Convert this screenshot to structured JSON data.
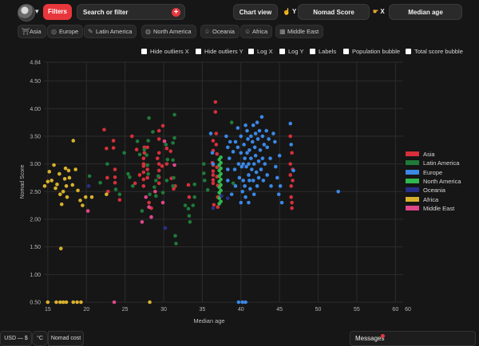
{
  "topbar": {
    "filters_label": "Filters",
    "search_label": "Search or filter",
    "search_plus": "+",
    "chart_view_label": "Chart view",
    "y_axis_tag": "Y",
    "y_axis_value": "Nomad Score",
    "x_axis_tag": "X",
    "x_axis_value": "Median age"
  },
  "regions": [
    {
      "label": "Asia",
      "icon": "⛩"
    },
    {
      "label": "Europe",
      "icon": "◎"
    },
    {
      "label": "Latin America",
      "icon": "✎"
    },
    {
      "label": "North America",
      "icon": "◍"
    },
    {
      "label": "Oceania",
      "icon": "♧"
    },
    {
      "label": "Africa",
      "icon": "☺"
    },
    {
      "label": "Middle East",
      "icon": "▦"
    }
  ],
  "options": [
    "Hide outliers X",
    "Hide outliers Y",
    "Log X",
    "Log Y",
    "Labels",
    "Population bubble",
    "Total score bubble"
  ],
  "chart_data": {
    "type": "scatter",
    "xlabel": "Median age",
    "ylabel": "Nomad Score",
    "xlim": [
      14.5,
      61
    ],
    "ylim": [
      0.5,
      4.84
    ],
    "x_ticks": [
      "15",
      "20",
      "25",
      "30",
      "35",
      "40",
      "45",
      "50",
      "55",
      "60"
    ],
    "x_tick_extra": "60",
    "y_ticks": [
      "4.84",
      "4.50",
      "4.00",
      "3.50",
      "3.00",
      "2.50",
      "2.00",
      "1.50",
      "1.00",
      "0.50"
    ],
    "grid": true,
    "legend_position": "right",
    "series": [
      {
        "name": "Asia",
        "color": "#d6303a",
        "points": [
          [
            22.3,
            3.62
          ],
          [
            22.6,
            3.28
          ],
          [
            22.7,
            2.75
          ],
          [
            22.8,
            2.5
          ],
          [
            23.5,
            3.42
          ],
          [
            23.5,
            3.29
          ],
          [
            23.7,
            2.76
          ],
          [
            23.7,
            2.66
          ],
          [
            23.7,
            2.9
          ],
          [
            24.3,
            2.35
          ],
          [
            25.9,
            3.5
          ],
          [
            26.3,
            2.65
          ],
          [
            26.5,
            3.26
          ],
          [
            26.9,
            2.8
          ],
          [
            27.4,
            3.1
          ],
          [
            27.4,
            3.0
          ],
          [
            27.4,
            2.96
          ],
          [
            27.4,
            2.85
          ],
          [
            27.4,
            2.72
          ],
          [
            27.4,
            2.6
          ],
          [
            27.5,
            3.3
          ],
          [
            27.5,
            3.2
          ],
          [
            27.9,
            3.3
          ],
          [
            27.9,
            2.98
          ],
          [
            27.9,
            2.9
          ],
          [
            27.9,
            2.75
          ],
          [
            28.1,
            2.3
          ],
          [
            28.4,
            2.2
          ],
          [
            29.2,
            3.1
          ],
          [
            29.4,
            3.6
          ],
          [
            29.4,
            3.45
          ],
          [
            29.4,
            3.2
          ],
          [
            29.4,
            3.0
          ],
          [
            29.4,
            2.88
          ],
          [
            29.4,
            2.76
          ],
          [
            29.4,
            2.65
          ],
          [
            29.8,
            2.96
          ],
          [
            29.9,
            3.69
          ],
          [
            30.4,
            3.28
          ],
          [
            30.4,
            3.0
          ],
          [
            30.9,
            3.23
          ],
          [
            31.0,
            2.74
          ],
          [
            31.3,
            2.55
          ],
          [
            31.5,
            2.6
          ],
          [
            33.2,
            2.62
          ],
          [
            33.3,
            2.4
          ],
          [
            36.3,
            3.02
          ],
          [
            36.4,
            3.42
          ],
          [
            36.4,
            3.24
          ],
          [
            36.4,
            2.98
          ],
          [
            36.4,
            2.87
          ],
          [
            36.4,
            2.8
          ],
          [
            36.4,
            2.71
          ],
          [
            36.4,
            2.65
          ],
          [
            36.5,
            2.26
          ],
          [
            36.7,
            4.12
          ],
          [
            36.7,
            3.94
          ],
          [
            36.8,
            3.55
          ],
          [
            36.8,
            3.35
          ],
          [
            36.9,
            3.18
          ],
          [
            36.9,
            2.94
          ],
          [
            36.9,
            2.77
          ],
          [
            37.0,
            2.61
          ],
          [
            37.0,
            2.4
          ],
          [
            37.0,
            2.22
          ],
          [
            46.4,
            3.5
          ],
          [
            46.4,
            3.0
          ],
          [
            46.4,
            2.8
          ],
          [
            46.5,
            2.6
          ],
          [
            46.5,
            2.4
          ],
          [
            46.6,
            2.3
          ],
          [
            46.6,
            2.2
          ],
          [
            46.6,
            3.2
          ],
          [
            46.7,
            2.7
          ],
          [
            46.7,
            2.9
          ]
        ]
      },
      {
        "name": "Latin America",
        "color": "#1f7a3a",
        "points": [
          [
            20.4,
            2.78
          ],
          [
            21.8,
            2.66
          ],
          [
            22.7,
            3.0
          ],
          [
            23.8,
            2.54
          ],
          [
            24.3,
            2.45
          ],
          [
            24.9,
            3.2
          ],
          [
            25.4,
            2.82
          ],
          [
            25.6,
            2.76
          ],
          [
            26.0,
            2.6
          ],
          [
            26.6,
            3.41
          ],
          [
            26.9,
            3.17
          ],
          [
            27.2,
            2.15
          ],
          [
            27.5,
            3.26
          ],
          [
            27.8,
            3.16
          ],
          [
            27.9,
            2.98
          ],
          [
            28.0,
            3.42
          ],
          [
            28.0,
            2.82
          ],
          [
            28.1,
            3.83
          ],
          [
            28.2,
            2.45
          ],
          [
            28.6,
            3.58
          ],
          [
            28.8,
            2.58
          ],
          [
            29.0,
            2.42
          ],
          [
            29.0,
            2.7
          ],
          [
            29.3,
            2.78
          ],
          [
            29.9,
            2.48
          ],
          [
            30.3,
            3.35
          ],
          [
            30.4,
            2.7
          ],
          [
            30.5,
            3.08
          ],
          [
            31.2,
            3.38
          ],
          [
            31.2,
            3.07
          ],
          [
            31.2,
            2.6
          ],
          [
            31.3,
            2.75
          ],
          [
            31.4,
            3.89
          ],
          [
            31.4,
            3.47
          ],
          [
            31.5,
            1.7
          ],
          [
            31.6,
            1.56
          ],
          [
            32.8,
            2.25
          ],
          [
            33.2,
            2.19
          ],
          [
            33.3,
            2.06
          ],
          [
            33.4,
            1.95
          ],
          [
            33.8,
            2.25
          ],
          [
            34.0,
            2.63
          ],
          [
            34.0,
            2.4
          ],
          [
            35.2,
            3.0
          ],
          [
            35.2,
            2.83
          ],
          [
            35.3,
            2.7
          ],
          [
            35.7,
            2.53
          ],
          [
            38.8,
            3.75
          ],
          [
            39.0,
            2.65
          ]
        ]
      },
      {
        "name": "Europe",
        "color": "#3b88e6",
        "points": [
          [
            36.1,
            3.55
          ],
          [
            36.3,
            3.2
          ],
          [
            36.4,
            3.0
          ],
          [
            38.1,
            3.5
          ],
          [
            38.3,
            3.3
          ],
          [
            38.3,
            2.9
          ],
          [
            38.3,
            2.7
          ],
          [
            38.5,
            3.1
          ],
          [
            38.6,
            3.4
          ],
          [
            38.8,
            2.45
          ],
          [
            39.0,
            3.22
          ],
          [
            39.2,
            2.9
          ],
          [
            39.3,
            3.4
          ],
          [
            39.3,
            2.6
          ],
          [
            39.6,
            3.65
          ],
          [
            39.6,
            3.3
          ],
          [
            39.7,
            3.0
          ],
          [
            39.8,
            2.75
          ],
          [
            40.0,
            3.5
          ],
          [
            40.0,
            3.2
          ],
          [
            40.0,
            2.3
          ],
          [
            40.1,
            2.95
          ],
          [
            40.2,
            2.5
          ],
          [
            40.3,
            3.0
          ],
          [
            40.3,
            2.7
          ],
          [
            40.4,
            3.35
          ],
          [
            40.5,
            3.1
          ],
          [
            40.5,
            2.6
          ],
          [
            40.6,
            3.7
          ],
          [
            40.6,
            2.4
          ],
          [
            40.7,
            2.95
          ],
          [
            40.8,
            3.6
          ],
          [
            40.8,
            3.2
          ],
          [
            40.9,
            3.45
          ],
          [
            41.0,
            3.0
          ],
          [
            41.0,
            2.8
          ],
          [
            41.0,
            2.3
          ],
          [
            41.1,
            3.25
          ],
          [
            41.1,
            2.7
          ],
          [
            41.2,
            2.55
          ],
          [
            41.3,
            3.5
          ],
          [
            41.3,
            3.1
          ],
          [
            41.4,
            2.9
          ],
          [
            41.5,
            3.4
          ],
          [
            41.6,
            3.7
          ],
          [
            41.6,
            2.7
          ],
          [
            41.7,
            3.0
          ],
          [
            41.7,
            2.45
          ],
          [
            41.8,
            3.3
          ],
          [
            41.9,
            3.55
          ],
          [
            41.9,
            3.15
          ],
          [
            42.0,
            2.85
          ],
          [
            42.1,
            3.75
          ],
          [
            42.1,
            2.6
          ],
          [
            42.2,
            3.45
          ],
          [
            42.3,
            3.05
          ],
          [
            42.3,
            2.75
          ],
          [
            42.4,
            3.6
          ],
          [
            42.5,
            3.25
          ],
          [
            42.6,
            2.9
          ],
          [
            42.7,
            3.85
          ],
          [
            42.8,
            3.5
          ],
          [
            42.8,
            3.1
          ],
          [
            42.9,
            2.7
          ],
          [
            43.0,
            3.35
          ],
          [
            43.1,
            3.0
          ],
          [
            43.3,
            3.6
          ],
          [
            43.4,
            3.3
          ],
          [
            43.4,
            2.8
          ],
          [
            43.6,
            3.45
          ],
          [
            43.8,
            3.1
          ],
          [
            43.9,
            2.6
          ],
          [
            44.2,
            3.55
          ],
          [
            44.4,
            3.4
          ],
          [
            44.5,
            2.95
          ],
          [
            44.7,
            2.75
          ],
          [
            44.9,
            2.45
          ],
          [
            45.0,
            3.15
          ],
          [
            45.1,
            2.6
          ],
          [
            45.3,
            2.3
          ],
          [
            46.4,
            3.73
          ],
          [
            46.5,
            3.35
          ],
          [
            46.8,
            2.88
          ],
          [
            52.6,
            2.5
          ],
          [
            39.7,
            0.5
          ],
          [
            40.2,
            0.5
          ],
          [
            40.6,
            0.5
          ]
        ]
      },
      {
        "name": "North America",
        "color": "#2fb84e",
        "points": [
          [
            37.2,
            3.08
          ],
          [
            37.2,
            2.98
          ],
          [
            37.2,
            2.88
          ],
          [
            37.2,
            2.78
          ],
          [
            37.2,
            2.68
          ],
          [
            37.2,
            2.58
          ],
          [
            37.2,
            2.48
          ],
          [
            37.2,
            2.38
          ],
          [
            37.2,
            2.28
          ],
          [
            37.4,
            3.12
          ],
          [
            37.4,
            3.02
          ],
          [
            37.4,
            2.92
          ],
          [
            37.4,
            2.82
          ],
          [
            37.4,
            2.72
          ],
          [
            37.4,
            2.62
          ],
          [
            37.4,
            2.52
          ],
          [
            37.4,
            2.42
          ],
          [
            37.4,
            2.32
          ]
        ]
      },
      {
        "name": "Oceania",
        "color": "#272f8a",
        "points": [
          [
            20.3,
            2.6
          ],
          [
            30.2,
            1.84
          ],
          [
            36.4,
            2.2
          ],
          [
            37.5,
            2.42
          ],
          [
            38.3,
            2.38
          ]
        ]
      },
      {
        "name": "Africa",
        "color": "#d8b12c",
        "points": [
          [
            14.6,
            2.6
          ],
          [
            15.0,
            2.68
          ],
          [
            15.2,
            2.86
          ],
          [
            15.5,
            2.7
          ],
          [
            15.8,
            2.98
          ],
          [
            16.0,
            2.56
          ],
          [
            16.2,
            2.63
          ],
          [
            16.5,
            2.82
          ],
          [
            16.6,
            2.45
          ],
          [
            16.7,
            1.47
          ],
          [
            16.8,
            2.27
          ],
          [
            17.0,
            2.5
          ],
          [
            17.2,
            2.73
          ],
          [
            17.3,
            2.92
          ],
          [
            17.4,
            2.6
          ],
          [
            17.5,
            2.4
          ],
          [
            17.7,
            2.88
          ],
          [
            17.8,
            2.75
          ],
          [
            18.2,
            2.62
          ],
          [
            18.3,
            3.42
          ],
          [
            18.6,
            2.9
          ],
          [
            18.9,
            2.52
          ],
          [
            19.2,
            2.34
          ],
          [
            19.5,
            2.25
          ],
          [
            19.9,
            2.4
          ],
          [
            20.7,
            2.4
          ],
          [
            22.6,
            2.45
          ],
          [
            15.0,
            0.5
          ],
          [
            16.1,
            0.5
          ],
          [
            16.6,
            0.5
          ],
          [
            17.0,
            0.5
          ],
          [
            17.4,
            0.5
          ],
          [
            18.3,
            0.5
          ],
          [
            18.8,
            0.5
          ],
          [
            19.3,
            0.5
          ],
          [
            28.2,
            0.5
          ]
        ]
      },
      {
        "name": "Middle East",
        "color": "#e0478a",
        "points": [
          [
            20.2,
            2.15
          ],
          [
            27.2,
            1.95
          ],
          [
            27.7,
            2.4
          ],
          [
            28.1,
            2.22
          ],
          [
            28.4,
            2.04
          ],
          [
            28.9,
            2.5
          ],
          [
            29.9,
            2.3
          ],
          [
            30.1,
            3.41
          ],
          [
            31.4,
            2.98
          ],
          [
            23.6,
            0.5
          ]
        ]
      }
    ]
  },
  "bottom": {
    "currency": "USD — $",
    "temperature": "°C",
    "cost": "Nomad cost",
    "messages": "Messages"
  }
}
